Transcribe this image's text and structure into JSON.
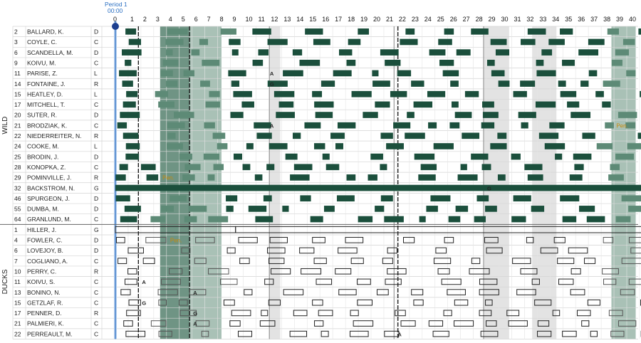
{
  "header": {
    "period_label": "Period 1",
    "clock": "00:00"
  },
  "minutes": [
    "0",
    "1",
    "2",
    "3",
    "4",
    "5",
    "6",
    "7",
    "8",
    "9",
    "10",
    "11",
    "12",
    "13",
    "14",
    "15",
    "16",
    "17",
    "18",
    "19",
    "20",
    "21",
    "22",
    "23",
    "24",
    "25",
    "26",
    "27",
    "28",
    "29",
    "30",
    "31",
    "32",
    "33",
    "34",
    "35",
    "36",
    "37",
    "38",
    "39",
    "40",
    "41"
  ],
  "colors": {
    "wild": "#1b4f3c",
    "wild_light": "#5d8a76",
    "ducks_stroke": "#222222",
    "highlight": "#7fa596",
    "highlight_light": "#d6d6d6",
    "pen": "#c88a0a",
    "period_line": "#2a6fc2"
  },
  "teams": [
    {
      "name": "WILD",
      "style": "filled",
      "players": [
        {
          "num": "2",
          "name": "BALLARD, K.",
          "pos": "D"
        },
        {
          "num": "3",
          "name": "COYLE, C.",
          "pos": "C"
        },
        {
          "num": "6",
          "name": "SCANDELLA, M.",
          "pos": "D"
        },
        {
          "num": "9",
          "name": "KOIVU, M.",
          "pos": "C"
        },
        {
          "num": "11",
          "name": "PARISE, Z.",
          "pos": "L"
        },
        {
          "num": "14",
          "name": "FONTAINE, J.",
          "pos": "R"
        },
        {
          "num": "15",
          "name": "HEATLEY, D.",
          "pos": "L"
        },
        {
          "num": "17",
          "name": "MITCHELL, T.",
          "pos": "C"
        },
        {
          "num": "20",
          "name": "SUTER, R.",
          "pos": "D"
        },
        {
          "num": "21",
          "name": "BRODZIAK, K.",
          "pos": "C"
        },
        {
          "num": "22",
          "name": "NIEDERREITER, N.",
          "pos": "R"
        },
        {
          "num": "24",
          "name": "COOKE, M.",
          "pos": "L"
        },
        {
          "num": "25",
          "name": "BRODIN, J.",
          "pos": "D"
        },
        {
          "num": "28",
          "name": "KONOPKA, Z.",
          "pos": "C"
        },
        {
          "num": "29",
          "name": "POMINVILLE, J.",
          "pos": "R"
        },
        {
          "num": "32",
          "name": "BACKSTROM, N.",
          "pos": "G"
        },
        {
          "num": "46",
          "name": "SPURGEON, J.",
          "pos": "D"
        },
        {
          "num": "55",
          "name": "DUMBA, M.",
          "pos": "D"
        },
        {
          "num": "64",
          "name": "GRANLUND, M.",
          "pos": "C"
        }
      ]
    },
    {
      "name": "DUCKS",
      "style": "outline",
      "players": [
        {
          "num": "1",
          "name": "HILLER, J.",
          "pos": "G"
        },
        {
          "num": "4",
          "name": "FOWLER, C.",
          "pos": "D"
        },
        {
          "num": "6",
          "name": "LOVEJOY, B.",
          "pos": "D"
        },
        {
          "num": "7",
          "name": "COGLIANO, A.",
          "pos": "C"
        },
        {
          "num": "10",
          "name": "PERRY, C.",
          "pos": "R"
        },
        {
          "num": "11",
          "name": "KOIVU, S.",
          "pos": "C"
        },
        {
          "num": "13",
          "name": "BONINO, N.",
          "pos": "C"
        },
        {
          "num": "15",
          "name": "GETZLAF, R.",
          "pos": "C"
        },
        {
          "num": "17",
          "name": "PENNER, D.",
          "pos": "R"
        },
        {
          "num": "21",
          "name": "PALMIERI, K.",
          "pos": "C"
        },
        {
          "num": "22",
          "name": "PERREAULT, M.",
          "pos": "C"
        }
      ]
    }
  ],
  "events": [
    {
      "row": 4,
      "minute": 12,
      "label": "A",
      "type": "event"
    },
    {
      "row": 5,
      "minute": 12,
      "label": "G",
      "type": "event"
    },
    {
      "row": 9,
      "minute": 12,
      "label": "A",
      "type": "event"
    },
    {
      "row": 9,
      "minute": 39.1,
      "label": "Pen.",
      "type": "pen"
    },
    {
      "row": 14,
      "minute": 3.6,
      "label": "Pen.",
      "type": "pen"
    },
    {
      "row": 15,
      "minute": 29,
      "label": "G",
      "type": "event"
    },
    {
      "row": 20,
      "minute": 4.2,
      "label": "Pen.",
      "type": "pen"
    },
    {
      "row": 24,
      "minute": 2,
      "label": "A",
      "type": "event"
    },
    {
      "row": 25,
      "minute": 6,
      "label": "A",
      "type": "event"
    },
    {
      "row": 26,
      "minute": 2,
      "label": "G",
      "type": "event"
    },
    {
      "row": 27,
      "minute": 6,
      "label": "G",
      "type": "event"
    },
    {
      "row": 28,
      "minute": 6,
      "label": "A",
      "type": "event"
    },
    {
      "row": 29,
      "minute": 22,
      "label": "A",
      "type": "event"
    },
    {
      "row": 31,
      "minute": 22,
      "label": "A",
      "type": "event"
    }
  ],
  "highlights": [
    {
      "start": 3.5,
      "end": 5.8,
      "shade": "dark"
    },
    {
      "start": 5.8,
      "end": 8.3,
      "shade": "mid"
    },
    {
      "start": 12.1,
      "end": 12.9,
      "shade": "light"
    },
    {
      "start": 28.8,
      "end": 30.8,
      "shade": "light"
    },
    {
      "start": 32.6,
      "end": 34.5,
      "shade": "light"
    },
    {
      "start": 38.8,
      "end": 40.7,
      "shade": "mid"
    }
  ],
  "period_marks": [
    0
  ],
  "goal_lines": [
    1.8,
    5.8,
    22.1
  ],
  "whistle_lines": [
    12.05,
    21.8,
    28.8
  ]
}
